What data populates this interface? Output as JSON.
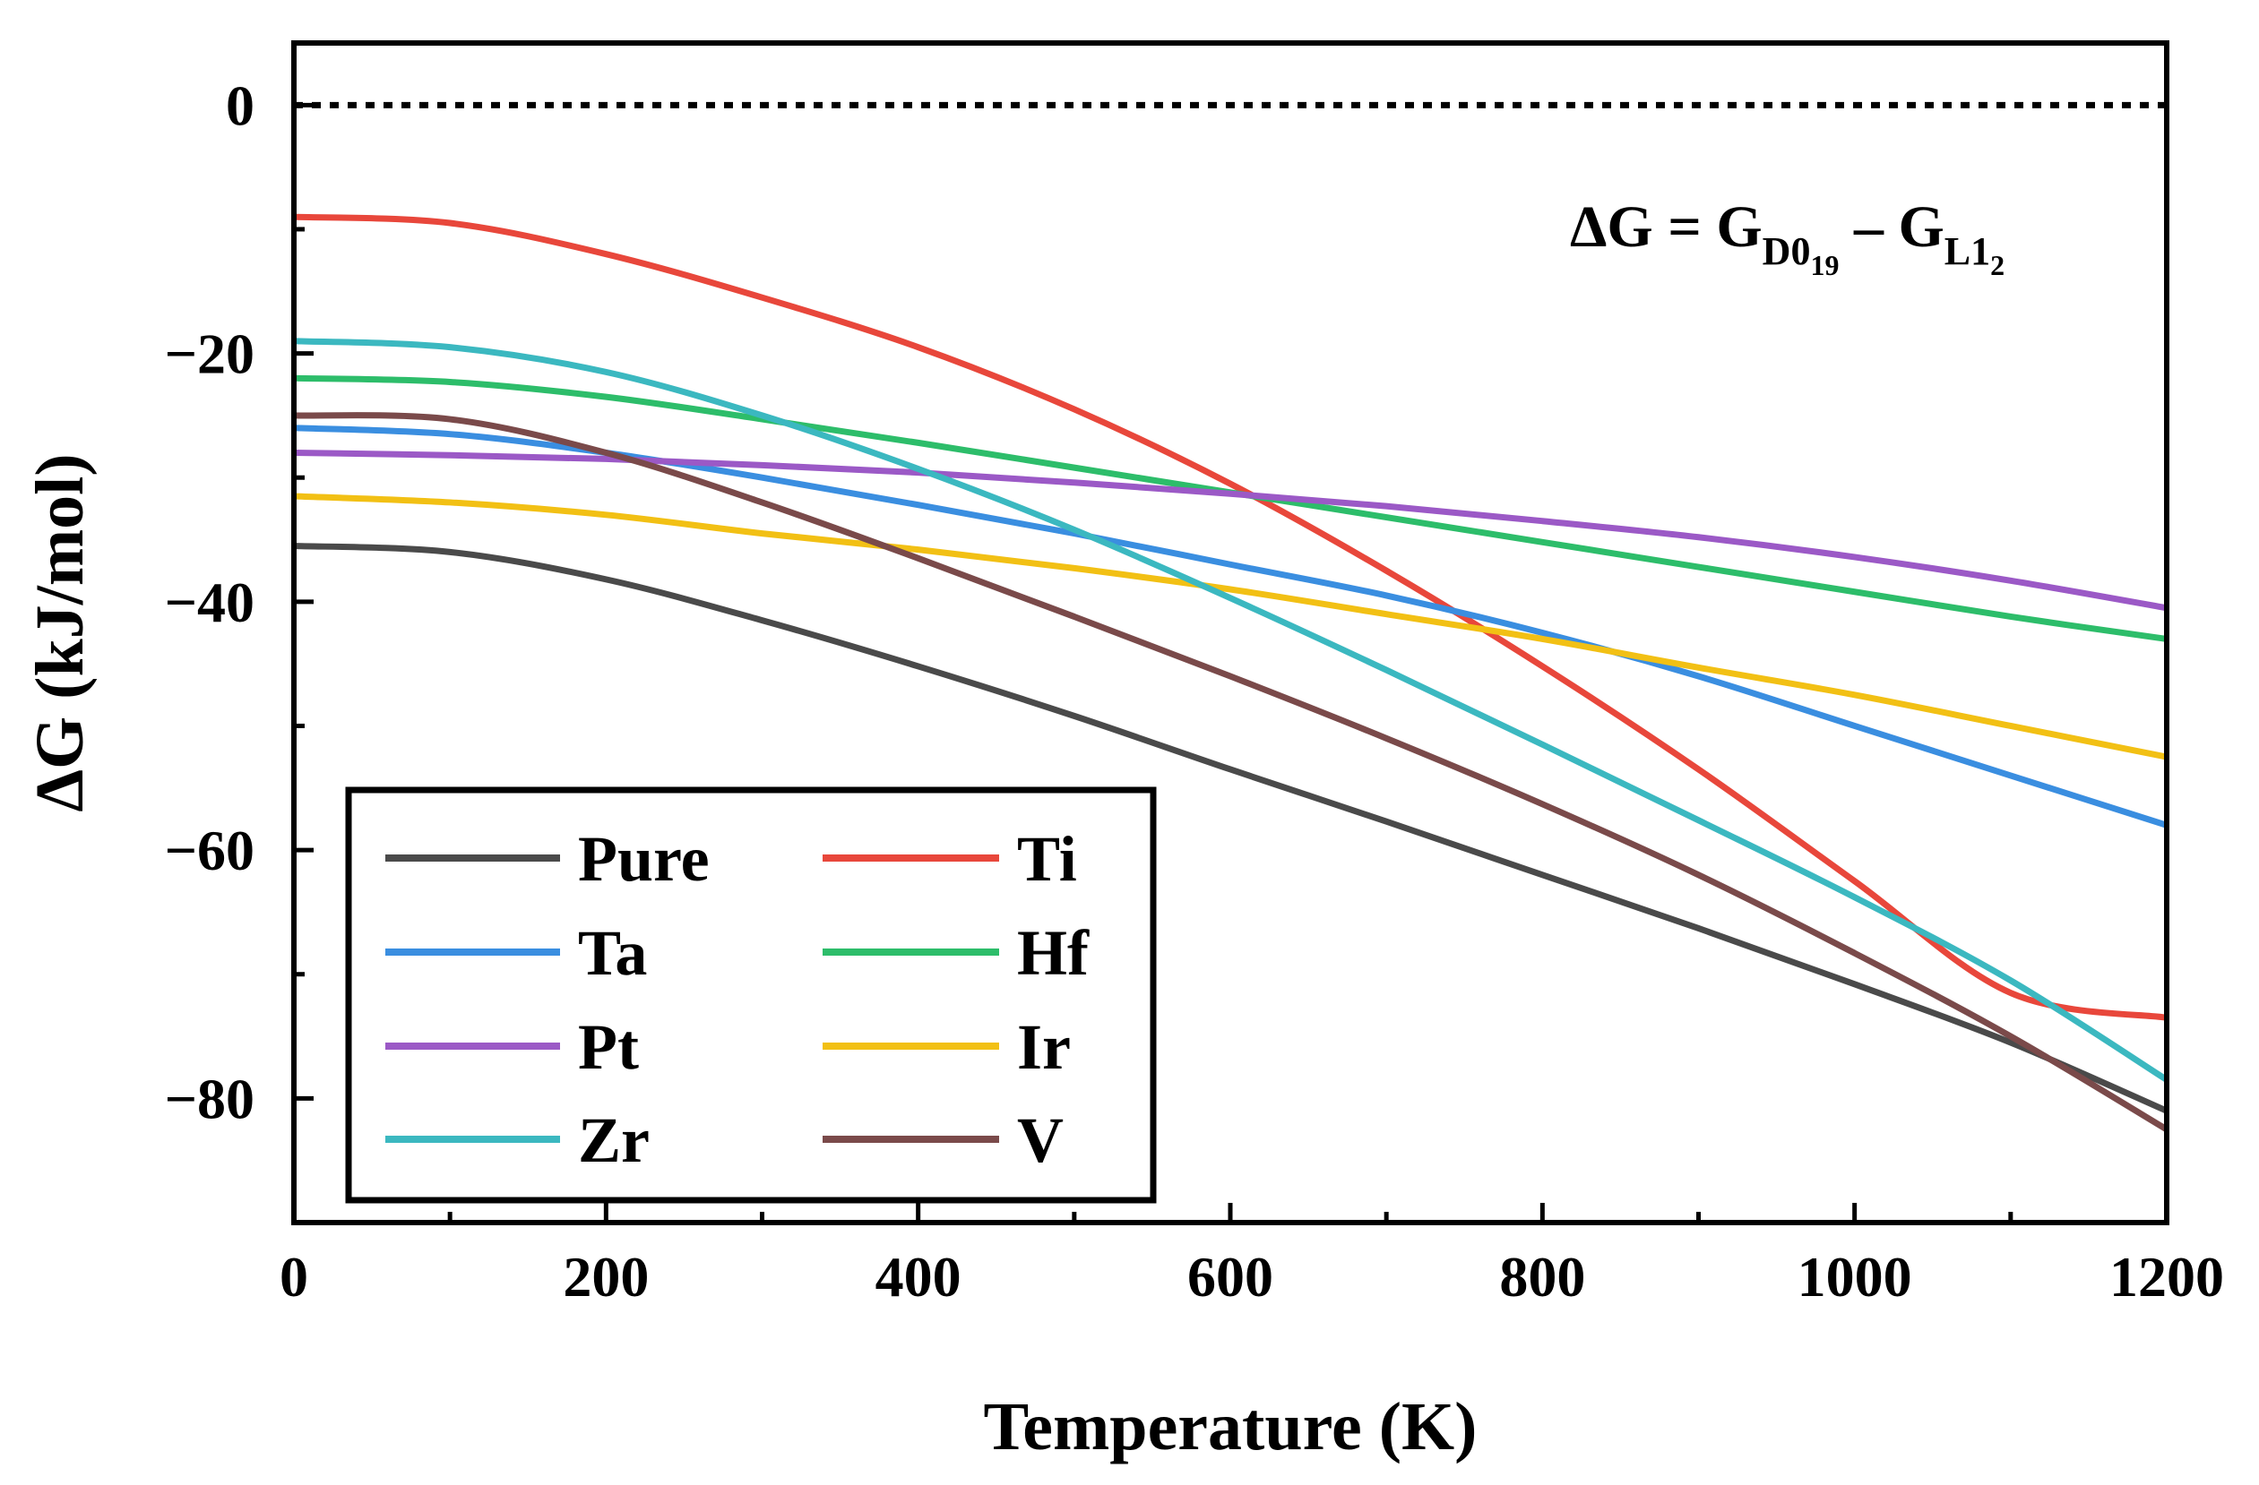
{
  "chart_data": {
    "type": "line",
    "title": "",
    "xlabel": "Temperature (K)",
    "ylabel": "ΔG (kJ/mol)",
    "xlim": [
      0,
      1200
    ],
    "ylim": [
      -90,
      5
    ],
    "xticks": [
      0,
      200,
      400,
      600,
      800,
      1000,
      1200
    ],
    "xtick_labels": [
      "0",
      "200",
      "400",
      "600",
      "800",
      "1000",
      "1200"
    ],
    "yticks": [
      0,
      -20,
      -40,
      -60,
      -80
    ],
    "ytick_labels": [
      "0",
      "−20",
      "−40",
      "−60",
      "−80"
    ],
    "grid": false,
    "legend_position": "bottom-left",
    "reference_line": {
      "y": 0,
      "style": "dotted",
      "color": "#000000"
    },
    "annotation": {
      "prefix": "ΔG = G",
      "sub1": "D0",
      "subsub1": "19",
      "minus": " – G",
      "sub2": "L1",
      "subsub2": "2"
    },
    "x": [
      0,
      100,
      200,
      300,
      400,
      500,
      600,
      700,
      800,
      900,
      1000,
      1100,
      1200
    ],
    "series": [
      {
        "name": "Pure",
        "color": "#4a4a4a",
        "values": [
          -35.5,
          -36,
          -38.2,
          -41.5,
          -45.2,
          -49.2,
          -53.5,
          -57.7,
          -62,
          -66.3,
          -70.8,
          -75.5,
          -81
        ]
      },
      {
        "name": "Ti",
        "color": "#e8473b",
        "values": [
          -9,
          -9.5,
          -12,
          -15.5,
          -19.5,
          -24.5,
          -30.5,
          -37.5,
          -45.2,
          -53.5,
          -62.5,
          -71.5,
          -73.5
        ]
      },
      {
        "name": "Ta",
        "color": "#3a8ee0",
        "values": [
          -26,
          -26.5,
          -28,
          -30,
          -32.2,
          -34.5,
          -37,
          -39.5,
          -42.5,
          -46,
          -50,
          -54,
          -58
        ]
      },
      {
        "name": "Hf",
        "color": "#2dbd6a",
        "values": [
          -22,
          -22.3,
          -23.5,
          -25.3,
          -27.2,
          -29.2,
          -31.2,
          -33.2,
          -35.2,
          -37.2,
          -39.2,
          -41.2,
          -43
        ]
      },
      {
        "name": "Pt",
        "color": "#9b59c6",
        "values": [
          -28,
          -28.2,
          -28.5,
          -29,
          -29.6,
          -30.4,
          -31.3,
          -32.3,
          -33.5,
          -34.8,
          -36.4,
          -38.3,
          -40.5
        ]
      },
      {
        "name": "Ir",
        "color": "#f2c014",
        "values": [
          -31.5,
          -32,
          -33,
          -34.5,
          -35.8,
          -37.3,
          -39,
          -41,
          -43,
          -45.3,
          -47.5,
          -50,
          -52.5
        ]
      },
      {
        "name": "Zr",
        "color": "#3bb8c0",
        "values": [
          -19,
          -19.5,
          -21.5,
          -25,
          -29.3,
          -34.2,
          -39.7,
          -45.5,
          -51.5,
          -57.6,
          -63.8,
          -70.5,
          -78.5
        ]
      },
      {
        "name": "V",
        "color": "#7a4a4a",
        "values": [
          -25,
          -25.3,
          -28,
          -32,
          -36.5,
          -41.2,
          -46,
          -51,
          -56.3,
          -62,
          -68.3,
          -75,
          -82.5
        ]
      }
    ]
  }
}
